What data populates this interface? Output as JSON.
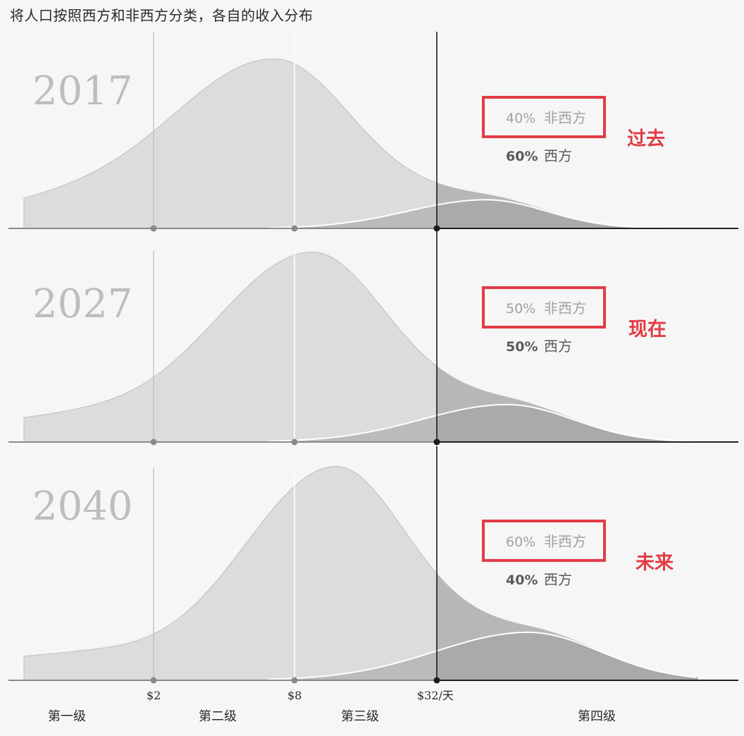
{
  "title": "将人口按照西方和非西方分类，各自的收入分布",
  "colors": {
    "background": "#f6f6f6",
    "non_western_fill": "#dcdcdc",
    "western_fill": "#b7b7b7",
    "western_dark_fill": "#a0a0a0",
    "highlight_box": "#e23c45",
    "annotation_text": "#e23c45",
    "year_text": "#bdbdbd",
    "axis": "#222222"
  },
  "x_axis": {
    "ticks": [
      "$2",
      "$8",
      "$32/天"
    ],
    "levels": [
      "第一级",
      "第二级",
      "第三级",
      "第四级"
    ]
  },
  "chart_data": [
    {
      "type": "area",
      "year": "2017",
      "annotation": "过去",
      "series": [
        {
          "name": "非西方",
          "share_label": "40%",
          "value": 40
        },
        {
          "name": "西方",
          "share_label": "60%",
          "value": 60
        }
      ]
    },
    {
      "type": "area",
      "year": "2027",
      "annotation": "现在",
      "series": [
        {
          "name": "非西方",
          "share_label": "50%",
          "value": 50
        },
        {
          "name": "西方",
          "share_label": "50%",
          "value": 50
        }
      ]
    },
    {
      "type": "area",
      "year": "2040",
      "annotation": "未来",
      "series": [
        {
          "name": "非西方",
          "share_label": "60%",
          "value": 60
        },
        {
          "name": "西方",
          "share_label": "40%",
          "value": 40
        }
      ]
    }
  ]
}
